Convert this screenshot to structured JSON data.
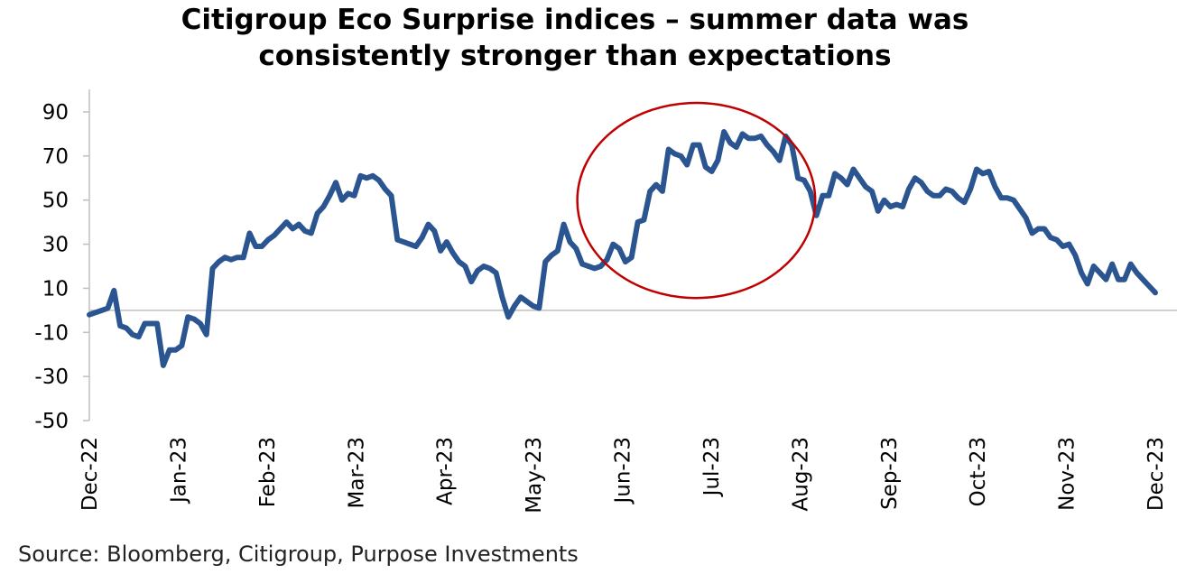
{
  "chart_data": {
    "type": "line",
    "title": "Citigroup Eco Surprise indices – summer data was\nconsistently stronger than expectations",
    "xlabel": "",
    "ylabel": "",
    "ylim": [
      -50,
      90
    ],
    "yticks": [
      "90",
      "70",
      "50",
      "30",
      "10",
      "-10",
      "-30",
      "-50"
    ],
    "xtick_labels": [
      "Dec-22",
      "Jan-23",
      "Feb-23",
      "Mar-23",
      "Apr-23",
      "May-23",
      "Jun-23",
      "Jul-23",
      "Aug-23",
      "Sep-23",
      "Oct-23",
      "Nov-23",
      "Dec-23"
    ],
    "grid": false,
    "legend": "none",
    "baseline": 0,
    "line_color": "#2b5591",
    "baseline_color": "#bfbfbf",
    "highlight_circle": {
      "color": "#c00000",
      "around": [
        "May-23",
        "Jul-23"
      ]
    },
    "series": [
      {
        "points": [
          [
            "Dec-22",
            -2
          ],
          [
            "",
            -1
          ],
          [
            "",
            0
          ],
          [
            "",
            1
          ],
          [
            "",
            9
          ],
          [
            "",
            -7
          ],
          [
            "",
            -8
          ],
          [
            "",
            -11
          ],
          [
            "",
            -12
          ],
          [
            "",
            -6
          ],
          [
            "",
            -6
          ],
          [
            "",
            -6
          ],
          [
            "",
            -25
          ],
          [
            "",
            -18
          ],
          [
            "",
            -18
          ],
          [
            "",
            -16
          ],
          [
            "",
            -3
          ],
          [
            "",
            -4
          ],
          [
            "",
            -6
          ],
          [
            "",
            -11
          ],
          [
            "Jan-23",
            19
          ],
          [
            "",
            22
          ],
          [
            "",
            24
          ],
          [
            "",
            23
          ],
          [
            "",
            24
          ],
          [
            "",
            24
          ],
          [
            "",
            35
          ],
          [
            "",
            29
          ],
          [
            "",
            29
          ],
          [
            "",
            32
          ],
          [
            "",
            34
          ],
          [
            "",
            37
          ],
          [
            "",
            40
          ],
          [
            "",
            37
          ],
          [
            "",
            39
          ],
          [
            "",
            36
          ],
          [
            "",
            35
          ],
          [
            "Feb-23",
            44
          ],
          [
            "",
            47
          ],
          [
            "",
            52
          ],
          [
            "",
            58
          ],
          [
            "",
            50
          ],
          [
            "",
            53
          ],
          [
            "",
            52
          ],
          [
            "",
            61
          ],
          [
            "",
            60
          ],
          [
            "",
            61
          ],
          [
            "",
            59
          ],
          [
            "",
            55
          ],
          [
            "",
            52
          ],
          [
            "",
            32
          ],
          [
            "",
            31
          ],
          [
            "",
            30
          ],
          [
            "",
            29
          ],
          [
            "Mar-23",
            33
          ],
          [
            "",
            39
          ],
          [
            "",
            36
          ],
          [
            "",
            27
          ],
          [
            "",
            31
          ],
          [
            "",
            26
          ],
          [
            "",
            22
          ],
          [
            "",
            20
          ],
          [
            "",
            13
          ],
          [
            "",
            18
          ],
          [
            "",
            20
          ],
          [
            "",
            19
          ],
          [
            "",
            17
          ],
          [
            "",
            6
          ],
          [
            "",
            -3
          ],
          [
            "",
            2
          ],
          [
            "Apr-23",
            6
          ],
          [
            "",
            4
          ],
          [
            "",
            2
          ],
          [
            "",
            1
          ],
          [
            "",
            22
          ],
          [
            "",
            25
          ],
          [
            "",
            27
          ],
          [
            "",
            39
          ],
          [
            "",
            31
          ],
          [
            "",
            28
          ],
          [
            "",
            21
          ],
          [
            "",
            20
          ],
          [
            "",
            19
          ],
          [
            "",
            20
          ],
          [
            "May-23",
            23
          ],
          [
            "",
            30
          ],
          [
            "",
            28
          ],
          [
            "",
            22
          ],
          [
            "",
            24
          ],
          [
            "",
            40
          ],
          [
            "",
            41
          ],
          [
            "",
            54
          ],
          [
            "",
            57
          ],
          [
            "",
            54
          ],
          [
            "",
            73
          ],
          [
            "",
            71
          ],
          [
            "",
            70
          ],
          [
            "Jun-23",
            66
          ],
          [
            "",
            75
          ],
          [
            "",
            75
          ],
          [
            "",
            65
          ],
          [
            "",
            63
          ],
          [
            "",
            68
          ],
          [
            "",
            81
          ],
          [
            "",
            76
          ],
          [
            "",
            74
          ],
          [
            "",
            80
          ],
          [
            "",
            78
          ],
          [
            "",
            78
          ],
          [
            "",
            79
          ],
          [
            "",
            75
          ],
          [
            "Jul-23",
            72
          ],
          [
            "",
            68
          ],
          [
            "",
            79
          ],
          [
            "",
            75
          ],
          [
            "",
            60
          ],
          [
            "",
            59
          ],
          [
            "",
            54
          ],
          [
            "",
            43
          ],
          [
            "",
            52
          ],
          [
            "",
            52
          ],
          [
            "",
            62
          ],
          [
            "",
            60
          ],
          [
            "",
            57
          ],
          [
            "",
            64
          ],
          [
            "",
            60
          ],
          [
            "",
            56
          ],
          [
            "",
            54
          ],
          [
            "Aug-23",
            45
          ],
          [
            "",
            50
          ],
          [
            "",
            47
          ],
          [
            "",
            48
          ],
          [
            "",
            47
          ],
          [
            "",
            55
          ],
          [
            "",
            60
          ],
          [
            "",
            58
          ],
          [
            "",
            54
          ],
          [
            "",
            52
          ],
          [
            "",
            52
          ],
          [
            "",
            55
          ],
          [
            "",
            54
          ],
          [
            "",
            51
          ],
          [
            "Sep-23",
            49
          ],
          [
            "",
            55
          ],
          [
            "",
            64
          ],
          [
            "",
            62
          ],
          [
            "",
            63
          ],
          [
            "",
            56
          ],
          [
            "",
            51
          ],
          [
            "",
            51
          ],
          [
            "",
            50
          ],
          [
            "",
            46
          ],
          [
            "",
            42
          ],
          [
            "",
            35
          ],
          [
            "",
            37
          ],
          [
            "",
            37
          ],
          [
            "Oct-23",
            33
          ],
          [
            "",
            32
          ],
          [
            "",
            29
          ],
          [
            "",
            30
          ],
          [
            "",
            25
          ],
          [
            "",
            17
          ],
          [
            "",
            12
          ],
          [
            "",
            20
          ],
          [
            "",
            17
          ],
          [
            "",
            14
          ],
          [
            "",
            21
          ],
          [
            "",
            14
          ],
          [
            "",
            14
          ],
          [
            "",
            21
          ],
          [
            "",
            17
          ],
          [
            "",
            14
          ],
          [
            "",
            11
          ],
          [
            "Dec-23",
            8
          ]
        ]
      }
    ]
  },
  "source_note": "Source: Bloomberg, Citigroup, Purpose Investments"
}
